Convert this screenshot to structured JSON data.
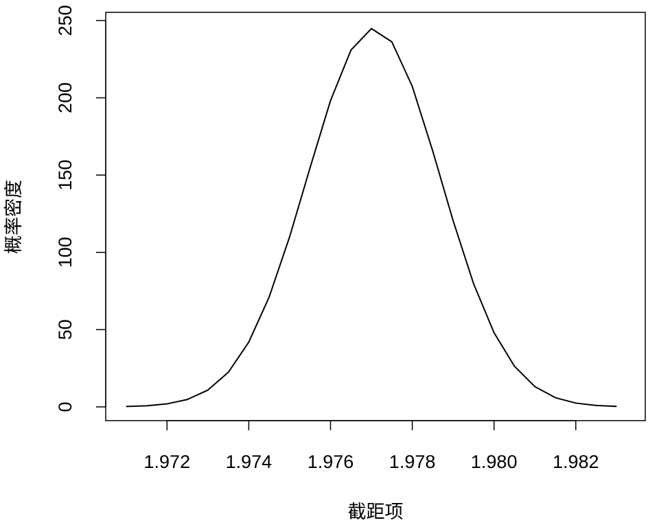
{
  "chart_data": {
    "type": "line",
    "xlabel": "截距项",
    "ylabel": "概率密度",
    "x": [
      1.971,
      1.9715,
      1.972,
      1.9725,
      1.973,
      1.9735,
      1.974,
      1.9745,
      1.975,
      1.9755,
      1.976,
      1.9765,
      1.977,
      1.9775,
      1.978,
      1.9785,
      1.979,
      1.9795,
      1.98,
      1.9805,
      1.981,
      1.9815,
      1.982,
      1.9825,
      1.983
    ],
    "values": [
      0.24,
      0.72,
      1.96,
      4.8,
      10.9,
      22.4,
      41.9,
      71.2,
      110.1,
      154.8,
      198.2,
      230.9,
      244.8,
      236.2,
      207.4,
      165.6,
      120.4,
      79.7,
      48.0,
      26.3,
      13.1,
      5.95,
      2.45,
      0.92,
      0.32
    ],
    "color": "#000000",
    "xlim": [
      1.9705,
      1.9837
    ],
    "ylim": [
      -8.9,
      255.3
    ],
    "xticks": [
      1.972,
      1.974,
      1.976,
      1.978,
      {
        "value": 1.98,
        "label": "1.980"
      },
      1.982
    ],
    "yticks": [
      0,
      50,
      100,
      150,
      200,
      250
    ]
  }
}
